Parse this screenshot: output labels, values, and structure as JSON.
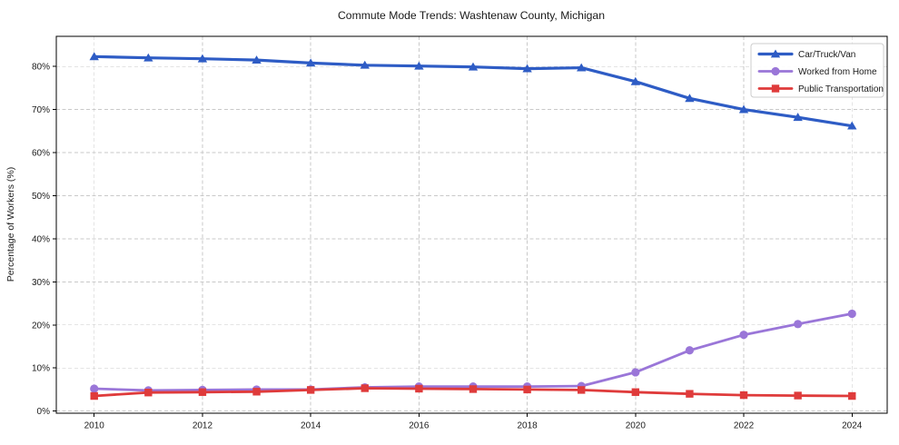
{
  "chart_data": {
    "type": "line",
    "title": "Commute Mode Trends: Washtenaw County, Michigan",
    "xlabel": "",
    "ylabel": "Percentage of Workers (%)",
    "x": [
      2010,
      2011,
      2012,
      2013,
      2014,
      2015,
      2016,
      2017,
      2018,
      2019,
      2020,
      2021,
      2022,
      2023,
      2024
    ],
    "series": [
      {
        "name": "Car/Truck/Van",
        "color": "#2e5cc5",
        "marker": "triangle",
        "line_width": 3.2,
        "values": [
          82.3,
          82.0,
          81.8,
          81.5,
          80.8,
          80.3,
          80.1,
          79.9,
          79.5,
          79.7,
          76.5,
          72.6,
          70.0,
          68.2,
          66.2
        ]
      },
      {
        "name": "Worked from Home",
        "color": "#9a76d8",
        "marker": "circle",
        "line_width": 2.8,
        "values": [
          5.2,
          4.8,
          4.9,
          5.0,
          5.0,
          5.5,
          5.7,
          5.7,
          5.7,
          5.8,
          9.0,
          14.1,
          17.7,
          20.2,
          22.6
        ]
      },
      {
        "name": "Public Transportation",
        "color": "#df3b3b",
        "marker": "square",
        "line_width": 2.8,
        "values": [
          3.5,
          4.3,
          4.4,
          4.5,
          4.9,
          5.3,
          5.2,
          5.1,
          5.0,
          4.9,
          4.4,
          4.0,
          3.7,
          3.6,
          3.5
        ]
      }
    ],
    "xticks": [
      2010,
      2012,
      2014,
      2016,
      2018,
      2020,
      2022,
      2024
    ],
    "ytick_values": [
      0,
      10,
      20,
      30,
      40,
      50,
      60,
      70,
      80
    ],
    "yticks": [
      "0%",
      "10%",
      "20%",
      "30%",
      "40%",
      "50%",
      "60%",
      "70%",
      "80%"
    ],
    "xlim": [
      2009.3,
      2024.65
    ],
    "ylim": [
      -0.5,
      87.0
    ],
    "grid": true,
    "grid_style": "dashed",
    "legend_position": "upper right",
    "colors": {
      "background": "#ffffff",
      "grid": "#c9c9c9",
      "spine": "#000000",
      "text": "#1a1a1a",
      "legend_border": "#cccccc",
      "legend_background": "#ffffff"
    }
  }
}
